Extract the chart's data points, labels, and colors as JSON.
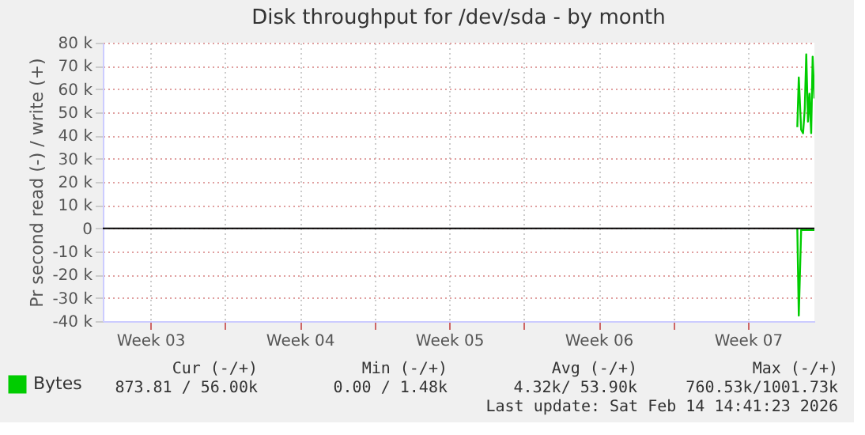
{
  "chart_data": {
    "type": "line",
    "title": "Disk throughput for /dev/sda - by month",
    "ylabel": "Pr second read (-) / write (+)",
    "xlim": [
      "2026-01-12T06:30",
      "2026-02-14T14:41"
    ],
    "xticks": [
      {
        "value": "2026-01-14T12:00",
        "label": "Week 03"
      },
      {
        "value": "2026-01-18T00:00",
        "label": null
      },
      {
        "value": "2026-01-21T12:00",
        "label": "Week 04"
      },
      {
        "value": "2026-01-25T00:00",
        "label": null
      },
      {
        "value": "2026-01-28T12:00",
        "label": "Week 05"
      },
      {
        "value": "2026-02-01T00:00",
        "label": null
      },
      {
        "value": "2026-02-04T12:00",
        "label": "Week 06"
      },
      {
        "value": "2026-02-08T00:00",
        "label": null
      },
      {
        "value": "2026-02-11T12:00",
        "label": "Week 07"
      }
    ],
    "ylim": [
      -40000,
      80000
    ],
    "yticks": [
      {
        "value": -40000,
        "label": "-40 k"
      },
      {
        "value": -30000,
        "label": "-30 k"
      },
      {
        "value": -20000,
        "label": "-20 k"
      },
      {
        "value": -10000,
        "label": "-10 k"
      },
      0,
      {
        "value": 10000,
        "label": "10 k"
      },
      {
        "value": 20000,
        "label": "20 k"
      },
      {
        "value": 30000,
        "label": "30 k"
      },
      {
        "value": 40000,
        "label": "40 k"
      },
      {
        "value": 50000,
        "label": "50 k"
      },
      {
        "value": 60000,
        "label": "60 k"
      },
      {
        "value": 70000,
        "label": "70 k"
      },
      {
        "value": 80000,
        "label": "80 k"
      }
    ],
    "series": [
      {
        "name": "Bytes",
        "color": "#00cc00",
        "x": [
          "2026-02-13T19:28",
          "2026-02-13T21:08",
          "2026-02-13T23:47",
          "2026-02-14T01:56",
          "2026-02-14T03:52",
          "2026-02-14T05:32",
          "2026-02-14T07:28",
          "2026-02-14T09:08",
          "2026-02-14T11:04",
          "2026-02-14T12:44",
          "2026-02-14T14:40"
        ],
        "values": [
          43600,
          65000,
          42500,
          41000,
          51600,
          75000,
          46000,
          58000,
          41000,
          74000,
          56000
        ]
      },
      {
        "color": "#00cc00",
        "x": [
          "2026-02-13T19:28",
          "2026-02-13T21:08",
          "2026-02-13T23:47",
          "2026-02-14T14:40"
        ],
        "values": [
          0,
          -37600,
          -700,
          -700
        ]
      }
    ],
    "ref_lines": [
      {
        "axis": "y",
        "value": 0,
        "color": "#000000"
      }
    ],
    "grid": true,
    "legend": "bottom left",
    "annotations": [
      "Cur (-/+)",
      "Min (-/+)",
      "Avg (-/+)",
      "Max (-/+)",
      "873.81 /  56.00k",
      "0.00 /    1.48k",
      "4.32k/  53.90k",
      "760.53k/1001.73k",
      "Last update: Sat Feb 14 14:41:23 2026"
    ]
  }
}
